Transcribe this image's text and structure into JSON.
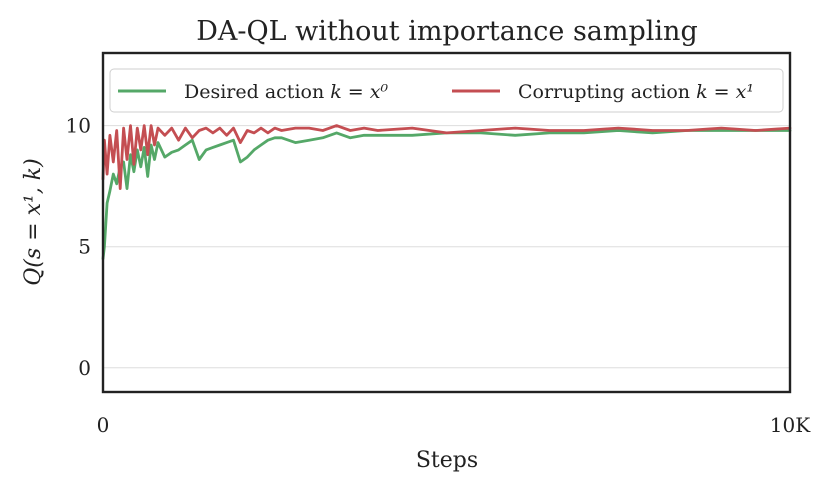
{
  "chart_data": {
    "type": "line",
    "title": "DA-QL without importance sampling",
    "xlabel": "Steps",
    "ylabel": "Q(s = x¹, k)",
    "xlim": [
      0,
      10000
    ],
    "ylim": [
      -1,
      13
    ],
    "x_ticks": [
      {
        "value": 0,
        "label": "0"
      },
      {
        "value": 10000,
        "label": "10K"
      }
    ],
    "y_ticks": [
      {
        "value": 0,
        "label": "0"
      },
      {
        "value": 5,
        "label": "5"
      },
      {
        "value": 10,
        "label": "10"
      }
    ],
    "grid": "horizontal",
    "legend_position": "top",
    "series": [
      {
        "name": "Desired action k = x⁰",
        "legend_text": "Desired action ",
        "legend_math": "k = x⁰",
        "color": "#55a868",
        "x": [
          0,
          20,
          60,
          100,
          150,
          200,
          250,
          300,
          350,
          400,
          450,
          500,
          550,
          600,
          650,
          700,
          750,
          800,
          900,
          1000,
          1100,
          1200,
          1300,
          1400,
          1500,
          1600,
          1700,
          1800,
          1900,
          2000,
          2100,
          2200,
          2300,
          2400,
          2500,
          2600,
          2800,
          3000,
          3200,
          3400,
          3600,
          3800,
          4000,
          4500,
          5000,
          5500,
          6000,
          6500,
          7000,
          7500,
          8000,
          8500,
          9000,
          9500,
          10000
        ],
        "y": [
          4.5,
          5.0,
          6.8,
          7.3,
          8.0,
          7.6,
          8.3,
          8.5,
          7.4,
          8.8,
          8.1,
          9.0,
          8.3,
          9.1,
          7.9,
          9.2,
          8.6,
          9.3,
          8.7,
          8.9,
          9.0,
          9.2,
          9.4,
          8.6,
          9.0,
          9.1,
          9.2,
          9.3,
          9.4,
          8.5,
          8.7,
          9.0,
          9.2,
          9.4,
          9.5,
          9.5,
          9.3,
          9.4,
          9.5,
          9.7,
          9.5,
          9.6,
          9.6,
          9.6,
          9.7,
          9.7,
          9.6,
          9.7,
          9.7,
          9.8,
          9.7,
          9.8,
          9.8,
          9.8,
          9.8
        ]
      },
      {
        "name": "Corrupting action k = x¹",
        "legend_text": "Corrupting action ",
        "legend_math": "k = x¹",
        "color": "#c44e52",
        "x": [
          0,
          20,
          60,
          100,
          150,
          200,
          250,
          300,
          350,
          400,
          450,
          500,
          550,
          600,
          650,
          700,
          750,
          800,
          900,
          1000,
          1100,
          1200,
          1300,
          1400,
          1500,
          1600,
          1700,
          1800,
          1900,
          2000,
          2100,
          2200,
          2300,
          2400,
          2500,
          2600,
          2800,
          3000,
          3200,
          3400,
          3600,
          3800,
          4000,
          4500,
          5000,
          5500,
          6000,
          6500,
          7000,
          7500,
          8000,
          8500,
          9000,
          9500,
          10000
        ],
        "y": [
          7.8,
          9.4,
          8.0,
          9.6,
          8.5,
          9.8,
          7.4,
          9.9,
          8.6,
          10.0,
          8.4,
          9.9,
          9.0,
          10.0,
          8.8,
          10.0,
          9.2,
          9.9,
          9.6,
          9.9,
          9.4,
          9.9,
          9.5,
          9.8,
          9.9,
          9.7,
          9.9,
          9.6,
          9.9,
          9.3,
          9.8,
          9.7,
          9.9,
          9.7,
          9.9,
          9.8,
          9.9,
          9.9,
          9.8,
          10.0,
          9.8,
          9.9,
          9.8,
          9.9,
          9.7,
          9.8,
          9.9,
          9.8,
          9.8,
          9.9,
          9.8,
          9.8,
          9.9,
          9.8,
          9.9
        ]
      }
    ]
  }
}
